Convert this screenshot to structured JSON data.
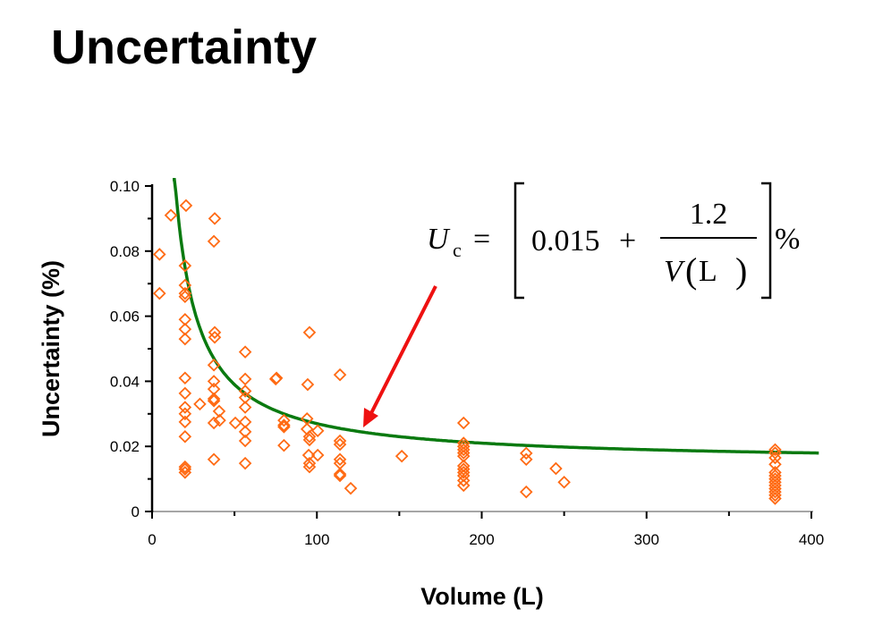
{
  "slide": {
    "title": "Uncertainty"
  },
  "chart_data": {
    "type": "scatter",
    "xlabel": "Volume (L)",
    "ylabel": "Uncertainty (%)",
    "xlim": [
      0,
      400
    ],
    "ylim": [
      0,
      0.1
    ],
    "x_ticks": [
      "0",
      "100",
      "200",
      "300",
      "400"
    ],
    "y_ticks": [
      "0",
      "0.02",
      "0.04",
      "0.06",
      "0.08",
      "0.10"
    ],
    "grid": false,
    "marker": "open-diamond",
    "colors": {
      "points": "#ff6a13",
      "fit": "#0a7a10",
      "arrow": "#ee1111"
    },
    "fit": {
      "a": 0.015,
      "b": 1.2,
      "x_from": 12.5,
      "x_to": 405
    },
    "equation": {
      "lhs": "U",
      "sub": "c",
      "eq": "=",
      "const": "0.015",
      "plus": "+",
      "num": "1.2",
      "den_var": "V",
      "den_unit": "L",
      "unit": "%"
    },
    "points": [
      [
        20.6,
        0.094
      ],
      [
        11.4,
        0.091
      ],
      [
        38,
        0.09
      ],
      [
        37.5,
        0.083
      ],
      [
        4.5,
        0.079
      ],
      [
        20,
        0.0755
      ],
      [
        4.5,
        0.067
      ],
      [
        20,
        0.0695
      ],
      [
        20,
        0.067
      ],
      [
        20,
        0.066
      ],
      [
        20,
        0.059
      ],
      [
        20,
        0.056
      ],
      [
        20,
        0.053
      ],
      [
        38,
        0.055
      ],
      [
        38,
        0.0535
      ],
      [
        56.5,
        0.049
      ],
      [
        37.5,
        0.045
      ],
      [
        20,
        0.041
      ],
      [
        37.5,
        0.04
      ],
      [
        37.5,
        0.0376
      ],
      [
        37.5,
        0.0346
      ],
      [
        37.5,
        0.034
      ],
      [
        56.5,
        0.0407
      ],
      [
        75,
        0.0407
      ],
      [
        20,
        0.0363
      ],
      [
        56.5,
        0.037
      ],
      [
        56.5,
        0.035
      ],
      [
        29,
        0.033
      ],
      [
        20,
        0.032
      ],
      [
        20,
        0.03
      ],
      [
        40.7,
        0.0308
      ],
      [
        56.5,
        0.032
      ],
      [
        20,
        0.0275
      ],
      [
        37.5,
        0.0272
      ],
      [
        41,
        0.028
      ],
      [
        50.5,
        0.0272
      ],
      [
        56.5,
        0.0275
      ],
      [
        56.5,
        0.0245
      ],
      [
        56.5,
        0.0217
      ],
      [
        20,
        0.023
      ],
      [
        37.5,
        0.016
      ],
      [
        56.5,
        0.0148
      ],
      [
        20,
        0.0137
      ],
      [
        20,
        0.013
      ],
      [
        20,
        0.012
      ],
      [
        95.5,
        0.055
      ],
      [
        75.5,
        0.041
      ],
      [
        94.4,
        0.039
      ],
      [
        114,
        0.042
      ],
      [
        80,
        0.028
      ],
      [
        80,
        0.0265
      ],
      [
        80,
        0.026
      ],
      [
        94,
        0.0285
      ],
      [
        94,
        0.0253
      ],
      [
        100.5,
        0.0248
      ],
      [
        95.5,
        0.023
      ],
      [
        95.5,
        0.022
      ],
      [
        80,
        0.0203
      ],
      [
        114,
        0.0217
      ],
      [
        114,
        0.0206
      ],
      [
        95,
        0.0173
      ],
      [
        100.5,
        0.0173
      ],
      [
        95.5,
        0.0148
      ],
      [
        95.5,
        0.0137
      ],
      [
        114,
        0.016
      ],
      [
        114,
        0.0148
      ],
      [
        114,
        0.0115
      ],
      [
        114,
        0.011
      ],
      [
        120.5,
        0.0071
      ],
      [
        151.5,
        0.017
      ],
      [
        189,
        0.0272
      ],
      [
        189,
        0.021
      ],
      [
        189,
        0.02
      ],
      [
        189,
        0.019
      ],
      [
        189,
        0.018
      ],
      [
        189,
        0.017
      ],
      [
        189,
        0.014
      ],
      [
        189,
        0.013
      ],
      [
        189,
        0.012
      ],
      [
        189,
        0.011
      ],
      [
        189,
        0.0095
      ],
      [
        189,
        0.008
      ],
      [
        227,
        0.0179
      ],
      [
        227,
        0.016
      ],
      [
        227,
        0.006
      ],
      [
        245,
        0.0132
      ],
      [
        250,
        0.009
      ],
      [
        378,
        0.019
      ],
      [
        378,
        0.018
      ],
      [
        378,
        0.0165
      ],
      [
        378,
        0.0145
      ],
      [
        378,
        0.012
      ],
      [
        378,
        0.011
      ],
      [
        378,
        0.01
      ],
      [
        378,
        0.009
      ],
      [
        378,
        0.008
      ],
      [
        378,
        0.007
      ],
      [
        378,
        0.006
      ],
      [
        378,
        0.005
      ],
      [
        378,
        0.004
      ]
    ]
  }
}
